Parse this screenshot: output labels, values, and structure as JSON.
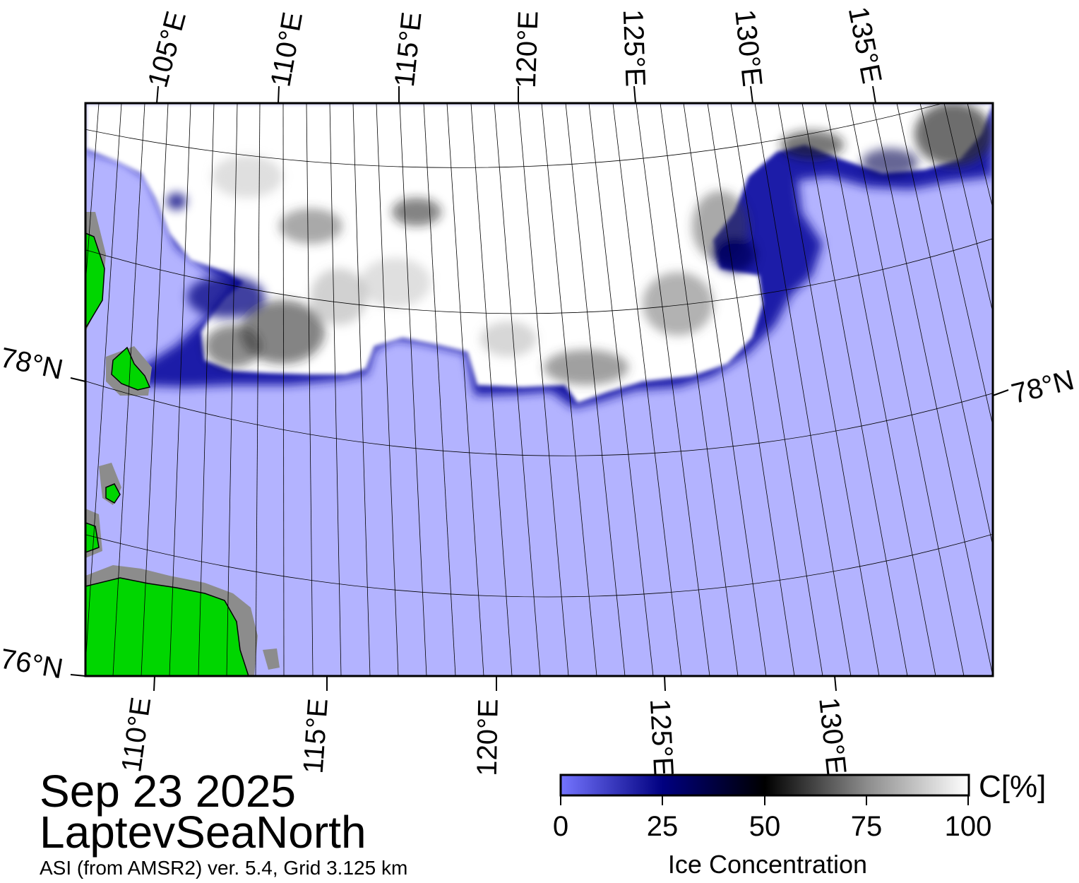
{
  "header": {
    "date": "Sep 23 2025",
    "region": "LaptevSeaNorth",
    "product": "ASI (from AMSR2) ver. 5.4,  Grid 3.125 km"
  },
  "map": {
    "top_lon_labels": [
      "105°E",
      "110°E",
      "115°E",
      "120°E",
      "125°E",
      "130°E",
      "135°E"
    ],
    "bottom_lon_labels": [
      "110°E",
      "115°E",
      "120°E",
      "125°E",
      "130°E"
    ],
    "lat_labels": {
      "left_78": "78°N",
      "right_78": "78°N",
      "left_76": "76°N"
    },
    "colors": {
      "open_water": "#b3b3ff",
      "land": "#00d600",
      "coast_mask": "#8c8c8c",
      "ice_high": "#ffffff",
      "ice_edge": "#000050"
    }
  },
  "colorbar": {
    "title": "Ice Concentration",
    "unit": "C[%]",
    "ticks": [
      "0",
      "25",
      "50",
      "75",
      "100"
    ],
    "stops": [
      {
        "value": 0,
        "color": "#7575ff"
      },
      {
        "value": 25,
        "color": "#000080"
      },
      {
        "value": 50,
        "color": "#000000"
      },
      {
        "value": 75,
        "color": "#8c8c8c"
      },
      {
        "value": 100,
        "color": "#ffffff"
      }
    ]
  }
}
